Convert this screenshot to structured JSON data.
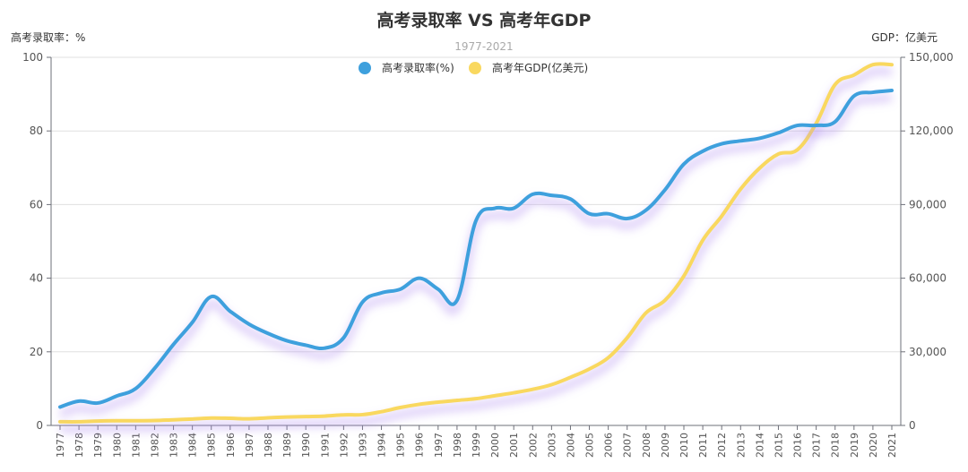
{
  "chart_data": {
    "type": "line",
    "title": "高考录取率 VS 高考年GDP",
    "subtitle": "1977-2021",
    "ylabel_left": "高考录取率：%",
    "ylabel_right": "GDP：亿美元",
    "ylim_left": [
      0,
      100
    ],
    "ylim_right": [
      0,
      150000
    ],
    "yticks_left": [
      "0",
      "20",
      "40",
      "60",
      "80",
      "100"
    ],
    "yticks_right": [
      "0",
      "30,000",
      "60,000",
      "90,000",
      "120,000",
      "150,000"
    ],
    "categories": [
      "1977",
      "1978",
      "1979",
      "1980",
      "1981",
      "1982",
      "1983",
      "1984",
      "1985",
      "1986",
      "1987",
      "1988",
      "1989",
      "1990",
      "1991",
      "1992",
      "1993",
      "1994",
      "1995",
      "1996",
      "1997",
      "1998",
      "1999",
      "2000",
      "2001",
      "2002",
      "2003",
      "2004",
      "2005",
      "2006",
      "2007",
      "2008",
      "2009",
      "2010",
      "2011",
      "2012",
      "2013",
      "2014",
      "2015",
      "2016",
      "2017",
      "2018",
      "2019",
      "2020",
      "2021"
    ],
    "series": [
      {
        "name": "高考录取率(%)",
        "axis": "left",
        "color": "#3ea0dd",
        "values": [
          5,
          6.6,
          6.1,
          8,
          10,
          15.5,
          22,
          28,
          35,
          31,
          27.5,
          25,
          23,
          21.8,
          21,
          23.8,
          33.5,
          36,
          37,
          40,
          37,
          34,
          55.6,
          59,
          59,
          62.8,
          62.5,
          61.5,
          57.5,
          57.5,
          56.2,
          58.5,
          64,
          71,
          74.5,
          76.5,
          77.3,
          78,
          79.5,
          81.5,
          81.5,
          82.5,
          89.5,
          90.5,
          91
        ]
      },
      {
        "name": "高考年GDP(亿美元)",
        "axis": "right",
        "color": "#f9d85f",
        "values": [
          1500,
          1500,
          1800,
          1900,
          1900,
          2000,
          2300,
          2600,
          3000,
          2900,
          2700,
          3100,
          3400,
          3600,
          3800,
          4300,
          4400,
          5600,
          7300,
          8600,
          9500,
          10200,
          10900,
          12100,
          13300,
          14700,
          16600,
          19600,
          23000,
          27600,
          35700,
          45900,
          51000,
          60900,
          75500,
          85300,
          96300,
          104800,
          110600,
          112300,
          123100,
          138900,
          142800,
          147000,
          147000
        ]
      }
    ],
    "legend": [
      "高考录取率(%)",
      "高考年GDP(亿美元)"
    ],
    "legend_position": "top-center"
  }
}
